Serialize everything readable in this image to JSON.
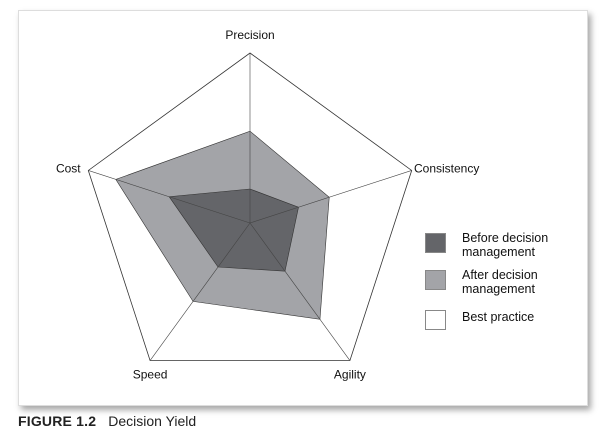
{
  "chart_data": {
    "type": "radar",
    "title": "",
    "axes": [
      "Precision",
      "Consistency",
      "Agility",
      "Speed",
      "Cost"
    ],
    "range": [
      0,
      1
    ],
    "grid": false,
    "legend_position": "right",
    "series": [
      {
        "name": "Best practice",
        "values": [
          1,
          1,
          1,
          1,
          1
        ],
        "color": "#ffffff"
      },
      {
        "name": "After decision management",
        "values": [
          0.54,
          0.49,
          0.7,
          0.57,
          0.83
        ],
        "color": "#a3a4a8"
      },
      {
        "name": "Before decision management",
        "values": [
          0.2,
          0.3,
          0.35,
          0.32,
          0.5
        ],
        "color": "#646569"
      }
    ]
  },
  "legend": [
    {
      "label": "Before decision management",
      "color": "#646569"
    },
    {
      "label": "After decision management",
      "color": "#a3a4a8"
    },
    {
      "label": "Best practice",
      "color": "#ffffff"
    }
  ],
  "caption": {
    "figure": "FIGURE 1.2",
    "title": "Decision Yield"
  }
}
